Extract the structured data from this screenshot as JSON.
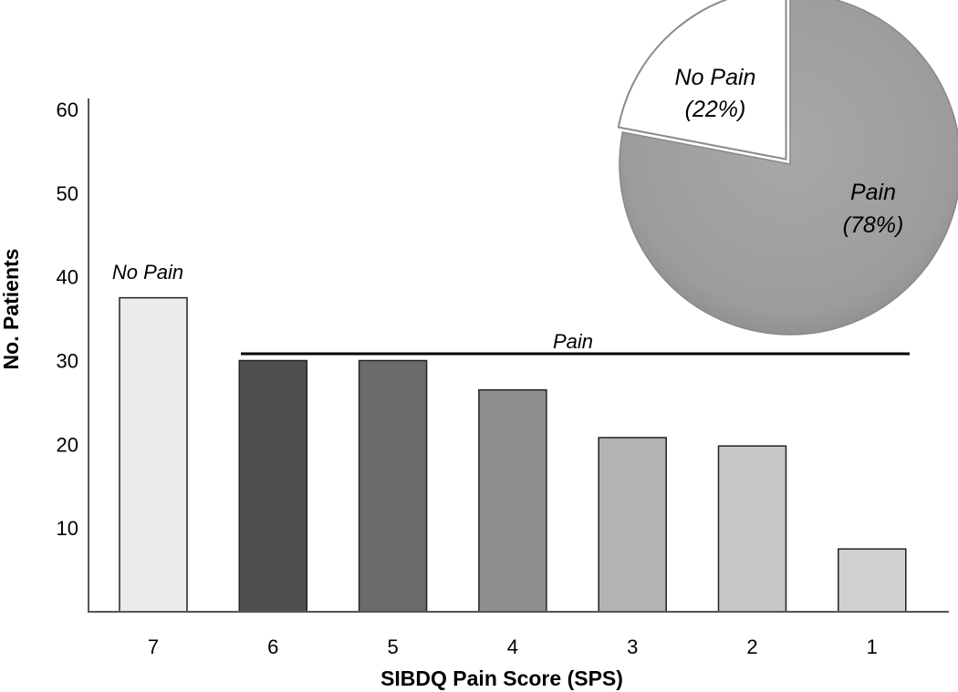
{
  "chart_data": [
    {
      "type": "bar",
      "xlabel": "SIBDQ Pain Score (SPS)",
      "ylabel": "No. Patients",
      "categories": [
        "7",
        "6",
        "5",
        "4",
        "3",
        "2",
        "1"
      ],
      "values": [
        37.5,
        30,
        30,
        26.5,
        20.8,
        19.8,
        7.5
      ],
      "ylim": [
        0,
        60
      ],
      "yticks": [
        10,
        20,
        30,
        40,
        50,
        60
      ],
      "grid": false,
      "bar_colors": [
        "#ebebeb",
        "#4f4f4f",
        "#6b6b6b",
        "#8e8e8e",
        "#b3b3b3",
        "#c6c6c6",
        "#d0d0d0"
      ],
      "annotations": {
        "no_pain_label": "No Pain",
        "pain_label": "Pain"
      }
    },
    {
      "type": "pie",
      "slices": [
        {
          "label": "No Pain",
          "percent_label": "(22%)",
          "value": 22,
          "color": "#ffffff"
        },
        {
          "label": "Pain",
          "percent_label": "(78%)",
          "value": 78,
          "color": "#a2a2a2"
        }
      ]
    }
  ]
}
